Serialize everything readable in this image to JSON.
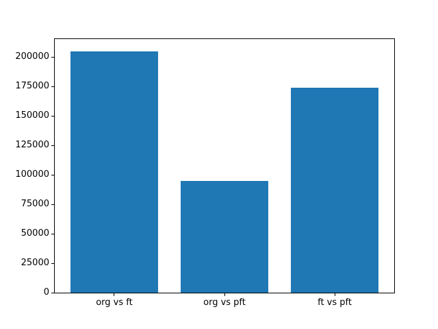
{
  "figure": {
    "background": "#ffffff"
  },
  "chart_data": {
    "type": "bar",
    "title": "",
    "xlabel": "",
    "ylabel": "",
    "categories": [
      "org vs ft",
      "org vs pft",
      "ft vs pft"
    ],
    "values": [
      205000,
      95000,
      173800
    ],
    "yticks": [
      0,
      25000,
      50000,
      75000,
      100000,
      125000,
      150000,
      175000,
      200000
    ],
    "ytick_labels": [
      "0",
      "25000",
      "50000",
      "75000",
      "100000",
      "125000",
      "150000",
      "175000",
      "200000"
    ],
    "ylim": [
      0,
      215250
    ],
    "xlim": [
      -0.54,
      2.54
    ],
    "bar_positions": [
      0,
      1,
      2
    ],
    "bar_width": 0.8,
    "bar_color": "#1f77b4",
    "spine_color": "#000000",
    "tick_color": "#000000",
    "grid": false,
    "legend": false
  }
}
